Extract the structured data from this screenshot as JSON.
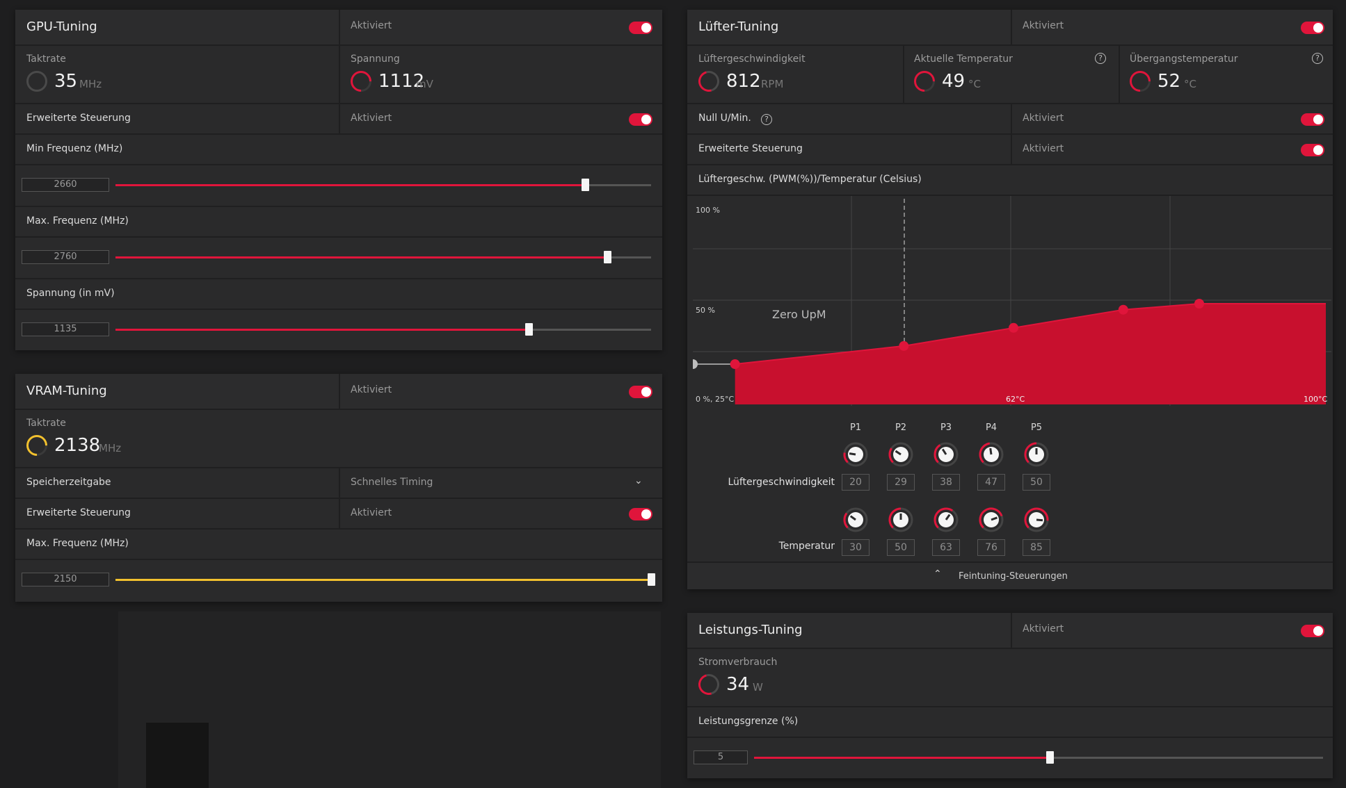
{
  "colors": {
    "accent": "#e0153b",
    "vram_accent": "#f2c12e",
    "panel": "#2a2a2b",
    "background": "#1e1e1f"
  },
  "gpu": {
    "title": "GPU-Tuning",
    "status": "Aktiviert",
    "clock": {
      "label": "Taktrate",
      "value": "35",
      "unit": "MHz"
    },
    "voltage": {
      "label": "Spannung",
      "value": "1112",
      "unit": "mV"
    },
    "advanced": {
      "label": "Erweiterte Steuerung",
      "status": "Aktiviert"
    },
    "sliders": [
      {
        "label": "Min Frequenz (MHz)",
        "value": "2660",
        "fraction": 0.877
      },
      {
        "label": "Max. Frequenz (MHz)",
        "value": "2760",
        "fraction": 0.918
      },
      {
        "label": "Spannung (in mV)",
        "value": "1135",
        "fraction": 0.771
      }
    ]
  },
  "vram": {
    "title": "VRAM-Tuning",
    "status": "Aktiviert",
    "clock": {
      "label": "Taktrate",
      "value": "2138",
      "unit": "MHz"
    },
    "timing": {
      "label": "Speicherzeitgabe",
      "value": "Schnelles Timing"
    },
    "advanced": {
      "label": "Erweiterte Steuerung",
      "status": "Aktiviert"
    },
    "slider": {
      "label": "Max. Frequenz (MHz)",
      "value": "2150",
      "fraction": 1.0
    }
  },
  "fan": {
    "title": "Lüfter-Tuning",
    "status": "Aktiviert",
    "speed": {
      "label": "Lüftergeschwindigkeit",
      "value": "812",
      "unit": "RPM"
    },
    "temp": {
      "label": "Aktuelle Temperatur",
      "value": "49",
      "unit": "°C"
    },
    "junction": {
      "label": "Übergangstemperatur",
      "value": "52",
      "unit": "°C"
    },
    "zero_rpm": {
      "label": "Null U/Min.",
      "status": "Aktiviert"
    },
    "advanced": {
      "label": "Erweiterte Steuerung",
      "status": "Aktiviert"
    },
    "curve_title": "Lüftergeschw. (PWM(%))/Temperatur (Celsius)",
    "chart_labels": {
      "top": "100 %",
      "mid": "50 %",
      "origin": "0 %, 25°C",
      "x_mid": "62°C",
      "x_max": "100°C",
      "zero_upm": "Zero UpM"
    },
    "points": [
      "P1",
      "P2",
      "P3",
      "P4",
      "P5"
    ],
    "speed_row_label": "Lüftergeschwindigkeit",
    "temp_row_label": "Temperatur",
    "speeds": [
      "20",
      "29",
      "38",
      "47",
      "50"
    ],
    "temps": [
      "30",
      "50",
      "63",
      "76",
      "85"
    ],
    "fine_tuning": "Feintuning-Steuerungen"
  },
  "power": {
    "title": "Leistungs-Tuning",
    "status": "Aktiviert",
    "usage": {
      "label": "Stromverbrauch",
      "value": "34",
      "unit": "W"
    },
    "limit": {
      "label": "Leistungsgrenze (%)",
      "value": "5",
      "fraction": 0.52
    }
  },
  "chart_data": {
    "type": "area",
    "title": "Lüftergeschw. (PWM(%))/Temperatur (Celsius)",
    "xlabel": "",
    "ylabel": "",
    "xlim": [
      25,
      100
    ],
    "ylim": [
      0,
      100
    ],
    "series": [
      {
        "x": [
          25,
          30,
          50,
          63,
          76,
          85,
          100
        ],
        "values": [
          20,
          20,
          29,
          38,
          47,
          50,
          50
        ]
      }
    ],
    "annotations": [
      "Zero UpM"
    ]
  }
}
